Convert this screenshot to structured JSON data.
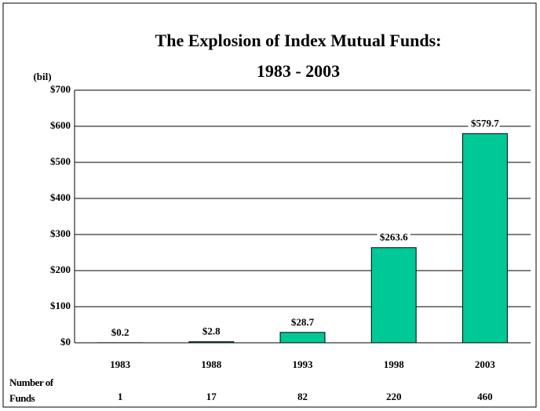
{
  "chart_data": {
    "type": "bar",
    "title": [
      "The Explosion of Index Mutual Funds:",
      "1983 - 2003"
    ],
    "y_label": "(bil)",
    "categories": [
      "1983",
      "1988",
      "1993",
      "1998",
      "2003"
    ],
    "values": [
      0.2,
      2.8,
      28.7,
      263.6,
      579.7
    ],
    "value_labels": [
      "$0.2",
      "$2.8",
      "$28.7",
      "$263.6",
      "$579.7"
    ],
    "color": "#00c896",
    "ylim": [
      0,
      700
    ],
    "yticks": [
      {
        "value": 0,
        "label": "$0"
      },
      {
        "value": 100,
        "label": "$100"
      },
      {
        "value": 200,
        "label": "$200"
      },
      {
        "value": 300,
        "label": "$300"
      },
      {
        "value": 400,
        "label": "$400"
      },
      {
        "value": 500,
        "label": "$500"
      },
      {
        "value": 600,
        "label": "$600"
      },
      {
        "value": 700,
        "label": "$700"
      }
    ],
    "grid": true,
    "fund_counts": {
      "label": "Number of Funds",
      "values": [
        1,
        17,
        82,
        220,
        460
      ]
    }
  }
}
